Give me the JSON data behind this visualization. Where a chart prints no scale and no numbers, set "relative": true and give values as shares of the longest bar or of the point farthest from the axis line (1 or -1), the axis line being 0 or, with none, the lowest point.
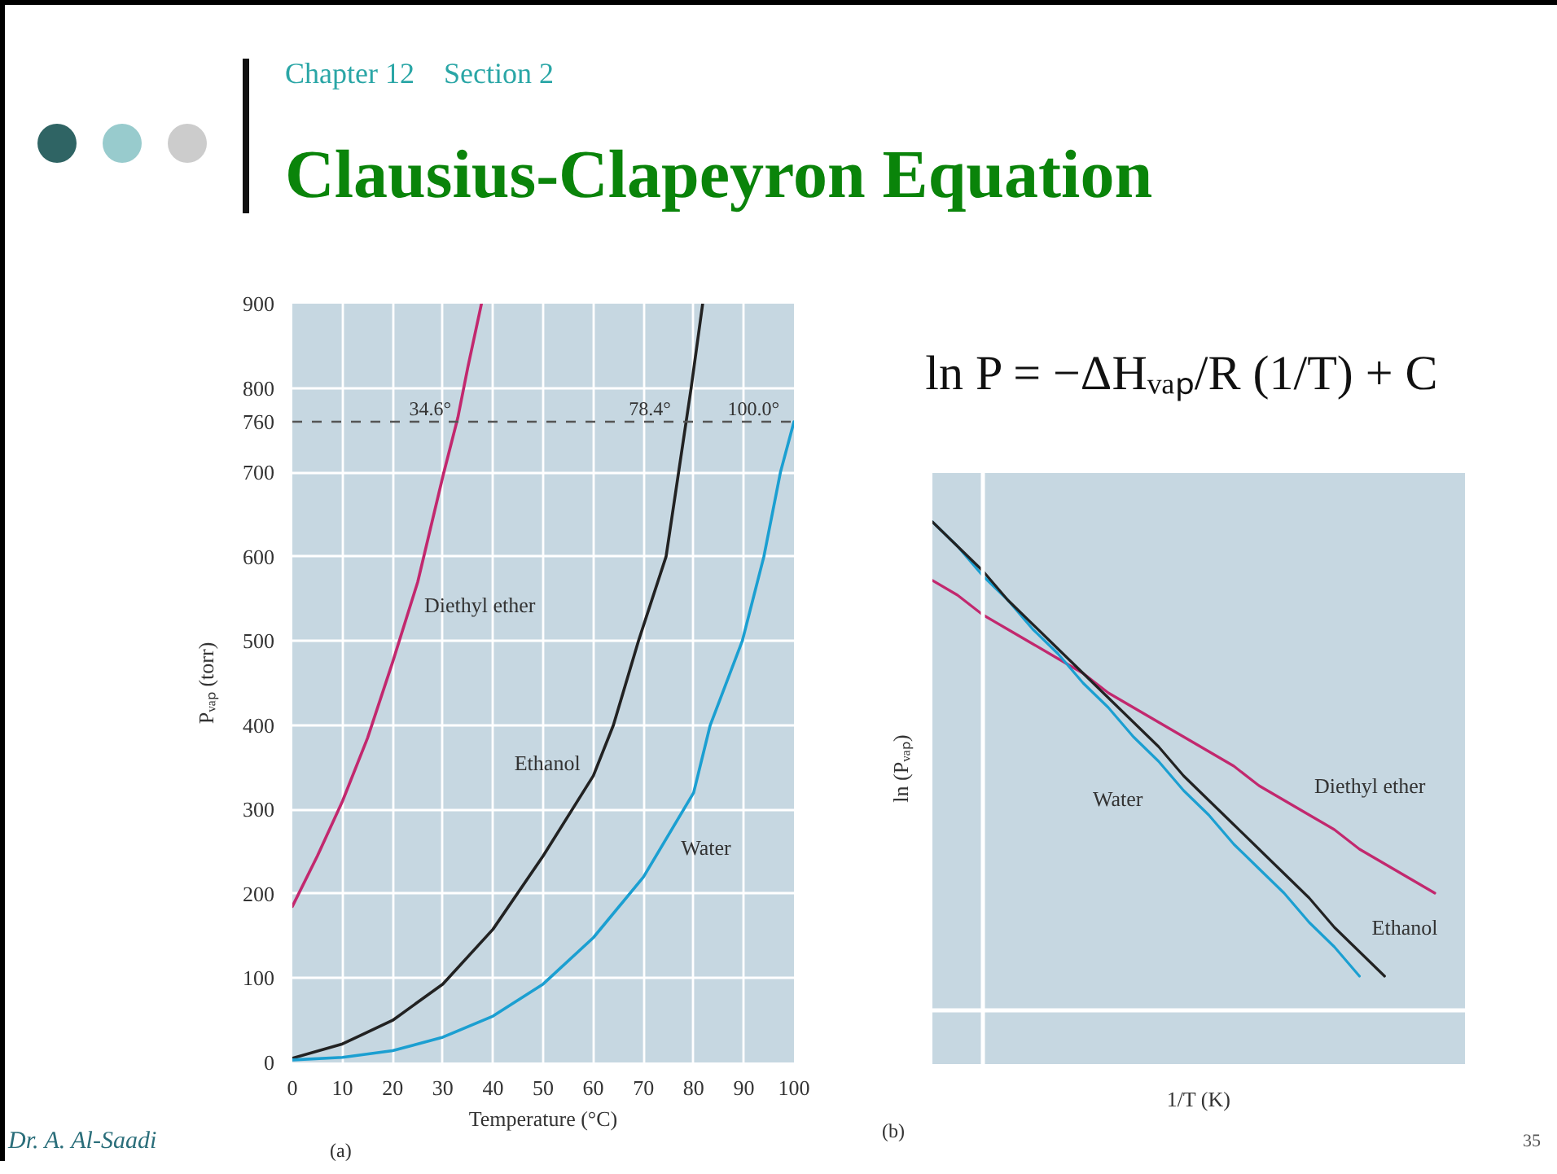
{
  "chart_data": [
    {
      "type": "line",
      "title": "Clausius-Clapeyron Equation",
      "subtitle": "Chapter 12    Section 2",
      "xlabel": "Temperature (°C)",
      "ylabel": "Pᵥₐₚ (torr)",
      "series": [
        {
          "name": "Diethyl ether",
          "color": "#c2286e",
          "x": [
            0,
            5,
            10,
            15,
            20,
            25,
            30,
            33,
            35,
            37.7
          ],
          "values": [
            185,
            245,
            310,
            385,
            475,
            570,
            695,
            765,
            825,
            900
          ]
        },
        {
          "name": "Ethanol",
          "color": "#222222",
          "x": [
            0,
            10,
            20,
            30,
            40,
            50,
            60,
            64,
            69,
            74.5,
            77,
            79.5,
            81.8
          ],
          "values": [
            5,
            22,
            50,
            93,
            158,
            245,
            340,
            400,
            500,
            600,
            700,
            800,
            900
          ]
        },
        {
          "name": "Water",
          "color": "#1b9fd1",
          "x": [
            0,
            10,
            20,
            30,
            40,
            50,
            60,
            70,
            80,
            83.3,
            89.7,
            94,
            97.3,
            100
          ],
          "values": [
            3,
            6,
            14,
            30,
            55,
            93,
            148,
            220,
            320,
            400,
            500,
            600,
            700,
            760
          ]
        }
      ],
      "xlim": [
        0,
        100
      ],
      "ylim": [
        0,
        900
      ],
      "xticks": [
        0,
        10,
        20,
        30,
        40,
        50,
        60,
        70,
        80,
        90,
        100
      ],
      "yticks": [
        0,
        100,
        200,
        300,
        400,
        500,
        600,
        700,
        800,
        900
      ],
      "grid": true,
      "ref_lines": [
        {
          "axis": "y",
          "value": 760,
          "label": "760",
          "line_style": "dashed",
          "color": "#555555"
        }
      ],
      "annotations": [
        {
          "text": "34.6°",
          "x": 34.6,
          "y": 760
        },
        {
          "text": "78.4°",
          "x": 78.4,
          "y": 760
        },
        {
          "text": "100.0°",
          "x": 100,
          "y": 760
        },
        "(a)"
      ]
    },
    {
      "type": "line",
      "relative": true,
      "xlabel": "1/T (K)",
      "ylabel": "ln (Pᵥₐₚ)",
      "categories": [
        null,
        null,
        null,
        null,
        null,
        null,
        null,
        null,
        null,
        null,
        null,
        null,
        null,
        null,
        null,
        null,
        null,
        null,
        null,
        null,
        null
      ],
      "series": [
        {
          "name": "Diethyl ether",
          "color": "#c2286e",
          "values": [
            0.88,
            0.85,
            0.81,
            0.78,
            0.75,
            0.72,
            0.69,
            0.65,
            0.62,
            0.59,
            0.56,
            0.53,
            0.5,
            0.46,
            0.43,
            0.4,
            0.37,
            0.33,
            0.3,
            0.27,
            0.24
          ]
        },
        {
          "name": "Water",
          "color": "#1b9fd1",
          "values": [
            1.0,
            0.95,
            0.89,
            0.84,
            0.78,
            0.73,
            0.67,
            0.62,
            0.56,
            0.51,
            0.45,
            0.4,
            0.34,
            0.29,
            0.24,
            0.18,
            0.13,
            0.07,
            null,
            null,
            null
          ]
        },
        {
          "name": "Ethanol",
          "color": "#222222",
          "values": [
            1.0,
            0.95,
            0.9,
            0.84,
            0.79,
            0.74,
            0.69,
            0.64,
            0.59,
            0.54,
            0.48,
            0.43,
            0.38,
            0.33,
            0.28,
            0.23,
            0.17,
            0.12,
            0.07,
            null,
            null
          ]
        }
      ],
      "annotations": [
        "ln P = −ΔHᵥₐₚ/R (1/T) + C",
        "(b)",
        "Dr. A. Al-Saadi",
        "35"
      ]
    }
  ]
}
